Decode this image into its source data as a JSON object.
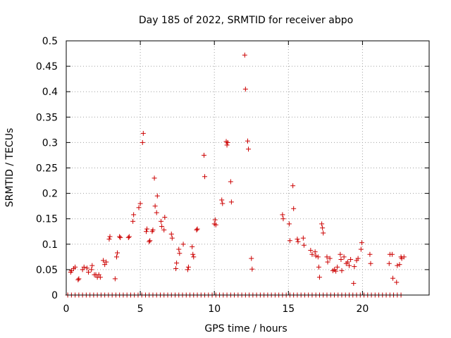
{
  "chart_data": {
    "type": "scatter",
    "title": "Day 185 of 2022, SRMTID for receiver abpo",
    "xlabel": "GPS time / hours",
    "ylabel": "SRMTID / TECUs",
    "xlim": [
      0,
      24.5
    ],
    "ylim": [
      0,
      0.5
    ],
    "x_ticks": [
      0,
      5,
      10,
      15,
      20
    ],
    "x_tick_labels": [
      "0",
      "5",
      "10",
      "15",
      "20"
    ],
    "y_ticks": [
      0,
      0.05,
      0.1,
      0.15,
      0.2,
      0.25,
      0.3,
      0.35,
      0.4,
      0.45,
      0.5
    ],
    "y_tick_labels": [
      "0",
      "0.05",
      "0.1",
      "0.15",
      "0.2",
      "0.25",
      "0.3",
      "0.35",
      "0.4",
      "0.45",
      "0.5"
    ],
    "grid": true,
    "marker": "+",
    "color": "#cc0000",
    "zero_baseline": {
      "x_start": 0.1,
      "x_end": 22.8,
      "step": 0.25,
      "value": 0
    },
    "series": [
      {
        "name": "SRMTID",
        "points": [
          [
            0.3,
            0.045
          ],
          [
            0.35,
            0.048
          ],
          [
            0.5,
            0.052
          ],
          [
            0.6,
            0.055
          ],
          [
            0.8,
            0.03
          ],
          [
            0.85,
            0.032
          ],
          [
            1.1,
            0.05
          ],
          [
            1.2,
            0.055
          ],
          [
            1.4,
            0.053
          ],
          [
            1.5,
            0.045
          ],
          [
            1.7,
            0.05
          ],
          [
            1.75,
            0.058
          ],
          [
            1.9,
            0.04
          ],
          [
            2.0,
            0.04
          ],
          [
            2.1,
            0.035
          ],
          [
            2.2,
            0.04
          ],
          [
            2.3,
            0.035
          ],
          [
            2.5,
            0.068
          ],
          [
            2.6,
            0.06
          ],
          [
            2.7,
            0.065
          ],
          [
            2.9,
            0.11
          ],
          [
            2.95,
            0.115
          ],
          [
            3.3,
            0.032
          ],
          [
            3.4,
            0.075
          ],
          [
            3.45,
            0.083
          ],
          [
            3.6,
            0.115
          ],
          [
            3.65,
            0.113
          ],
          [
            4.2,
            0.113
          ],
          [
            4.25,
            0.115
          ],
          [
            4.5,
            0.145
          ],
          [
            4.55,
            0.158
          ],
          [
            4.9,
            0.172
          ],
          [
            5.0,
            0.18
          ],
          [
            5.15,
            0.3
          ],
          [
            5.2,
            0.318
          ],
          [
            5.4,
            0.125
          ],
          [
            5.45,
            0.13
          ],
          [
            5.6,
            0.105
          ],
          [
            5.65,
            0.107
          ],
          [
            5.8,
            0.125
          ],
          [
            5.85,
            0.128
          ],
          [
            5.95,
            0.23
          ],
          [
            6.0,
            0.175
          ],
          [
            6.1,
            0.162
          ],
          [
            6.15,
            0.195
          ],
          [
            6.4,
            0.145
          ],
          [
            6.45,
            0.135
          ],
          [
            6.6,
            0.128
          ],
          [
            6.65,
            0.153
          ],
          [
            7.1,
            0.12
          ],
          [
            7.15,
            0.112
          ],
          [
            7.4,
            0.052
          ],
          [
            7.45,
            0.063
          ],
          [
            7.6,
            0.09
          ],
          [
            7.65,
            0.082
          ],
          [
            7.9,
            0.1
          ],
          [
            8.2,
            0.05
          ],
          [
            8.25,
            0.055
          ],
          [
            8.5,
            0.095
          ],
          [
            8.55,
            0.08
          ],
          [
            8.6,
            0.075
          ],
          [
            8.8,
            0.128
          ],
          [
            8.85,
            0.13
          ],
          [
            9.3,
            0.275
          ],
          [
            9.35,
            0.233
          ],
          [
            10.0,
            0.14
          ],
          [
            10.05,
            0.148
          ],
          [
            10.1,
            0.138
          ],
          [
            10.5,
            0.187
          ],
          [
            10.55,
            0.18
          ],
          [
            10.8,
            0.302
          ],
          [
            10.85,
            0.295
          ],
          [
            10.9,
            0.3
          ],
          [
            11.1,
            0.223
          ],
          [
            11.15,
            0.183
          ],
          [
            12.05,
            0.472
          ],
          [
            12.1,
            0.405
          ],
          [
            12.25,
            0.303
          ],
          [
            12.3,
            0.287
          ],
          [
            12.5,
            0.072
          ],
          [
            12.55,
            0.051
          ],
          [
            14.6,
            0.158
          ],
          [
            14.65,
            0.15
          ],
          [
            15.05,
            0.14
          ],
          [
            15.1,
            0.107
          ],
          [
            15.3,
            0.215
          ],
          [
            15.35,
            0.17
          ],
          [
            15.6,
            0.11
          ],
          [
            15.65,
            0.105
          ],
          [
            16.0,
            0.112
          ],
          [
            16.05,
            0.098
          ],
          [
            16.5,
            0.088
          ],
          [
            16.6,
            0.08
          ],
          [
            16.8,
            0.085
          ],
          [
            16.85,
            0.077
          ],
          [
            17.0,
            0.075
          ],
          [
            17.05,
            0.055
          ],
          [
            17.1,
            0.035
          ],
          [
            17.25,
            0.14
          ],
          [
            17.3,
            0.132
          ],
          [
            17.35,
            0.122
          ],
          [
            17.6,
            0.075
          ],
          [
            17.65,
            0.065
          ],
          [
            17.8,
            0.072
          ],
          [
            18.0,
            0.048
          ],
          [
            18.1,
            0.05
          ],
          [
            18.2,
            0.047
          ],
          [
            18.3,
            0.055
          ],
          [
            18.5,
            0.08
          ],
          [
            18.55,
            0.07
          ],
          [
            18.6,
            0.048
          ],
          [
            18.75,
            0.075
          ],
          [
            18.9,
            0.062
          ],
          [
            19.0,
            0.065
          ],
          [
            19.1,
            0.058
          ],
          [
            19.2,
            0.07
          ],
          [
            19.4,
            0.023
          ],
          [
            19.45,
            0.056
          ],
          [
            19.6,
            0.068
          ],
          [
            19.7,
            0.072
          ],
          [
            19.9,
            0.09
          ],
          [
            19.95,
            0.103
          ],
          [
            20.5,
            0.08
          ],
          [
            20.55,
            0.062
          ],
          [
            21.8,
            0.062
          ],
          [
            21.85,
            0.08
          ],
          [
            22.0,
            0.08
          ],
          [
            22.05,
            0.033
          ],
          [
            22.3,
            0.025
          ],
          [
            22.35,
            0.058
          ],
          [
            22.5,
            0.06
          ],
          [
            22.6,
            0.075
          ],
          [
            22.65,
            0.072
          ],
          [
            22.8,
            0.075
          ]
        ]
      }
    ]
  }
}
